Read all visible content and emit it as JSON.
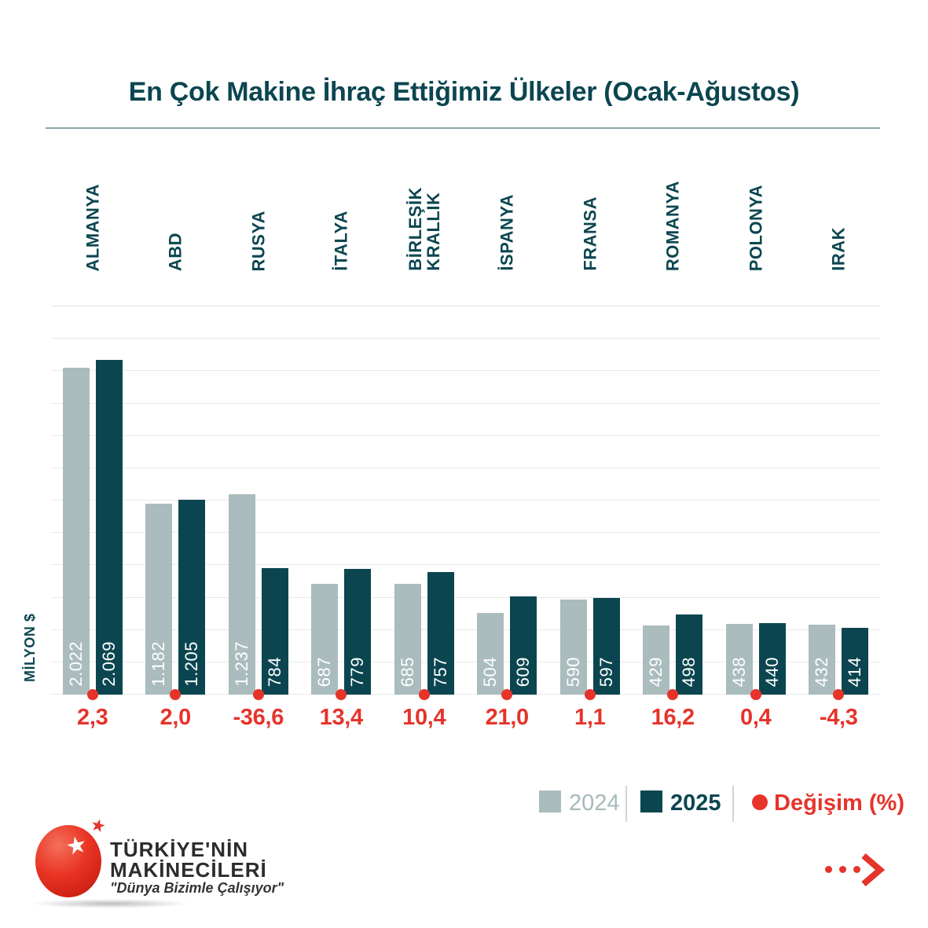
{
  "title": "En Çok Makine İhraç Ettiğimiz Ülkeler (Ocak-Ağustos)",
  "ylabel": "MİLYON $",
  "legend": {
    "items": [
      {
        "label": "2024",
        "swatch": "#aabcbd"
      },
      {
        "label": "2025",
        "swatch": "#0b4650"
      },
      {
        "label": "Değişim (%)",
        "swatch": "#e6342b"
      }
    ]
  },
  "logo": {
    "line1": "TÜRKİYE'NİN",
    "line2": "MAKİNECİLERİ",
    "tagline": "\"Dünya Bizimle Çalışıyor\"",
    "star": "★"
  },
  "colors": {
    "dark_teal": "#0b4650",
    "bar_2024": "#aabcbd",
    "bar_2025": "#0b4650",
    "red": "#e6342b",
    "grid": "#e7e9e9",
    "divider": "#8ca7ab"
  },
  "chart_data": {
    "type": "bar",
    "title": "En Çok Makine İhraç Ettiğimiz Ülkeler (Ocak-Ağustos)",
    "ylabel": "MİLYON $",
    "xlabel": "",
    "grid": true,
    "ylim": [
      0,
      2400
    ],
    "grid_step": 200,
    "legend_position": "bottom-right",
    "categories": [
      "ALMANYA",
      "ABD",
      "RUSYA",
      "İTALYA",
      "BİRLEŞİK\nKRALLIK",
      "İSPANYA",
      "FRANSA",
      "ROMANYA",
      "POLONYA",
      "IRAK"
    ],
    "series": [
      {
        "name": "2024",
        "values": [
          2022,
          1182,
          1237,
          687,
          685,
          504,
          590,
          429,
          438,
          432
        ],
        "labels": [
          "2.022",
          "1.182",
          "1.237",
          "687",
          "685",
          "504",
          "590",
          "429",
          "438",
          "432"
        ]
      },
      {
        "name": "2025",
        "values": [
          2069,
          1205,
          784,
          779,
          757,
          609,
          597,
          498,
          440,
          414
        ],
        "labels": [
          "2.069",
          "1.205",
          "784",
          "779",
          "757",
          "609",
          "597",
          "498",
          "440",
          "414"
        ]
      }
    ],
    "change_pct": [
      "2,3",
      "2,0",
      "-36,6",
      "13,4",
      "10,4",
      "21,0",
      "1,1",
      "16,2",
      "0,4",
      "-4,3"
    ]
  }
}
